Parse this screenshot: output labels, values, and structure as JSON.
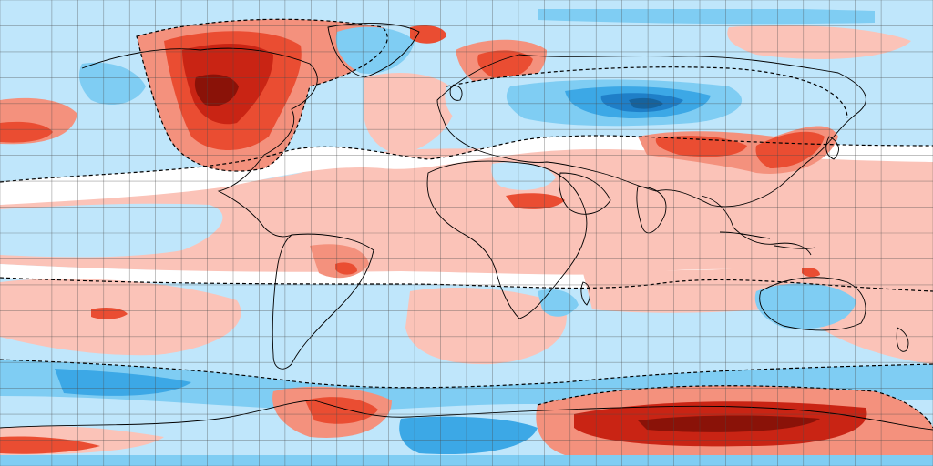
{
  "map": {
    "projection": "equirectangular",
    "grid": true,
    "grid_spacing_deg": 10,
    "lon_range": [
      -180,
      180
    ],
    "lat_range": [
      -90,
      90
    ],
    "contour_style": "dashed",
    "colors": {
      "ocean_background": "#bfe6fb",
      "cold_light": "#bfe6fb",
      "cold_medium": "#7fcdf3",
      "cold_strong": "#3ca8e6",
      "cold_deep": "#1f7fc8",
      "cold_darkest": "#16639e",
      "neutral": "#ffffff",
      "warm_light": "#fbc3b8",
      "warm_medium": "#f4917d",
      "warm_strong": "#ea4d32",
      "warm_deep": "#c92414",
      "warm_darkest": "#8a1208",
      "coastline": "#000000",
      "gridline": "#4a4a4a"
    }
  }
}
